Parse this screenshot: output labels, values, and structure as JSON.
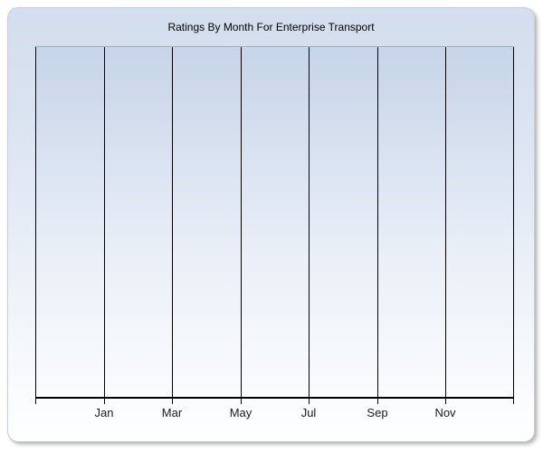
{
  "panel": {
    "title": "Ratings By Month For Enterprise Transport"
  },
  "chart_data": {
    "type": "line",
    "title": "Ratings By Month For Enterprise Transport",
    "x_tick_labels": [
      "Jan",
      "Mar",
      "May",
      "Jul",
      "Sep",
      "Nov"
    ],
    "series": [],
    "xlabel": "",
    "ylabel": "",
    "y_tick_labels": [],
    "grid": "vertical",
    "gridline_count": 8,
    "legend_position": "none"
  },
  "colors": {
    "gridline": "#000000",
    "axis": "#000000",
    "plot_top_border": "#a4abb5",
    "panel_border": "#c9cdd4",
    "panel_gradient_top": "#d3deee",
    "panel_gradient_bottom": "#feffff",
    "title_text": "#000000",
    "tick_label_text": "#1b1b1b"
  }
}
